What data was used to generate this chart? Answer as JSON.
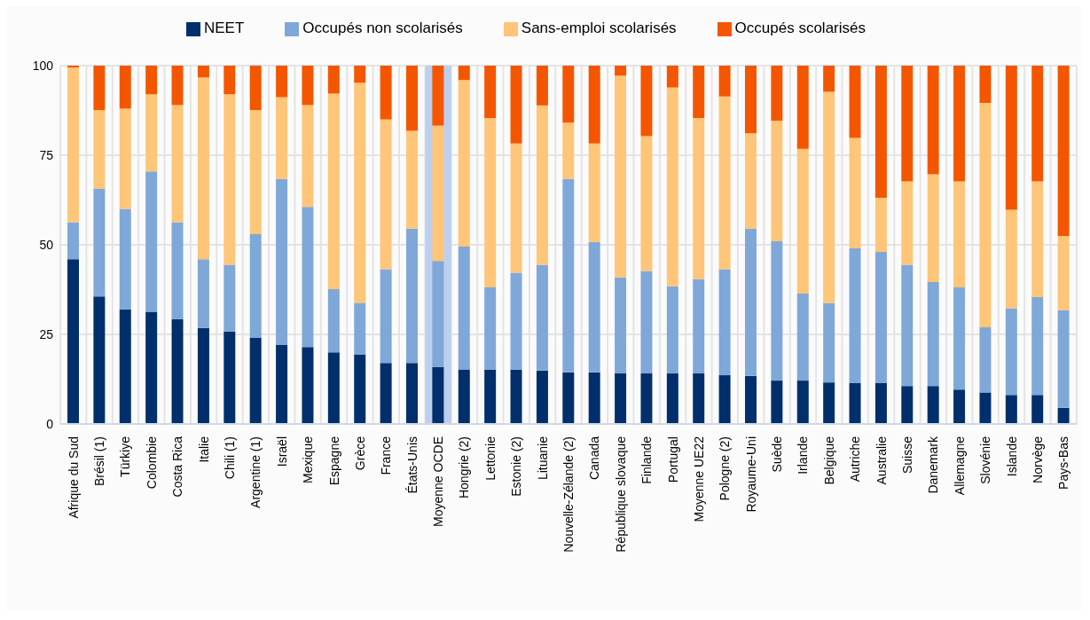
{
  "chart_data": {
    "type": "bar",
    "stacked": true,
    "categories": [
      "Afrique du Sud",
      "Brésil (1)",
      "Türkiye",
      "Colombie",
      "Costa Rica",
      "Italie",
      "Chili (1)",
      "Argentine (1)",
      "Israël",
      "Mexique",
      "Espagne",
      "Grèce",
      "France",
      "États-Unis",
      "Moyenne OCDE",
      "Hongrie (2)",
      "Lettonie",
      "Estonie (2)",
      "Lituanie",
      "Nouvelle-Zélande (2)",
      "Canada",
      "République slovaque",
      "Finlande",
      "Portugal",
      "Moyenne UE22",
      "Pologne (2)",
      "Royaume-Uni",
      "Suède",
      "Irlande",
      "Belgique",
      "Autriche",
      "Australie",
      "Suisse",
      "Danemark",
      "Allemagne",
      "Slovénie",
      "Islande",
      "Norvège",
      "Pays-Bas"
    ],
    "series": [
      {
        "name": "NEET",
        "color": "#002f6c",
        "values": [
          46,
          35.6,
          32,
          31.3,
          29.3,
          26.8,
          25.8,
          24,
          22,
          21.5,
          20,
          19.4,
          17,
          17,
          15.9,
          15.2,
          15.2,
          15.2,
          14.9,
          14.4,
          14.4,
          14.1,
          14.1,
          14.1,
          14.1,
          13.6,
          13.4,
          12.1,
          12.1,
          11.6,
          11.4,
          11.4,
          10.6,
          10.6,
          9.6,
          8.8,
          8.1,
          8.1,
          4.5
        ]
      },
      {
        "name": "Occupés non scolarisés",
        "color": "#7fa8d9",
        "values": [
          10.3,
          30.1,
          28,
          39.2,
          27,
          19.2,
          18.6,
          29,
          46.4,
          39.1,
          17.6,
          14.4,
          26.2,
          37.5,
          29.6,
          34.3,
          22.9,
          27,
          29.5,
          54,
          36.4,
          26.8,
          28.6,
          24.3,
          26.3,
          29.6,
          41.1,
          38.9,
          24.3,
          22.2,
          37.6,
          36.6,
          33.8,
          29,
          28.5,
          18.2,
          24.2,
          27.3,
          27.3
        ]
      },
      {
        "name": "Sans-emploi scolarisés",
        "color": "#ffc578",
        "values": [
          43.2,
          21.9,
          28,
          21.5,
          32.7,
          50.7,
          47.6,
          34.6,
          22.8,
          28.4,
          54.6,
          61.4,
          41.8,
          27.3,
          37.8,
          46.5,
          47.3,
          36.1,
          44.5,
          15.7,
          27.5,
          56.3,
          37.6,
          55.5,
          45,
          48.2,
          26.6,
          33.6,
          40.4,
          58.9,
          30.8,
          15.1,
          23.3,
          30.1,
          29.6,
          62.6,
          27.5,
          32.3,
          20.7
        ]
      },
      {
        "name": "Occupés scolarisés",
        "color": "#f45600",
        "values": [
          0.5,
          12.4,
          12,
          8,
          11,
          3.3,
          8,
          12.4,
          8.8,
          11,
          7.8,
          4.8,
          15,
          18.2,
          16.7,
          4,
          14.6,
          21.7,
          11.1,
          15.9,
          21.7,
          2.8,
          19.7,
          6.1,
          14.6,
          8.6,
          18.9,
          15.4,
          23.2,
          7.3,
          20.2,
          36.9,
          32.3,
          30.3,
          32.3,
          10.4,
          40.2,
          32.3,
          47.5
        ]
      }
    ],
    "ylim": [
      0,
      100
    ],
    "yticks": [
      0,
      25,
      50,
      75,
      100
    ],
    "grid": true,
    "legend": "top",
    "bands": [
      {
        "axis": "x",
        "from": "Moyenne OCDE",
        "to": "Moyenne OCDE",
        "color": "#bccfee"
      }
    ]
  }
}
